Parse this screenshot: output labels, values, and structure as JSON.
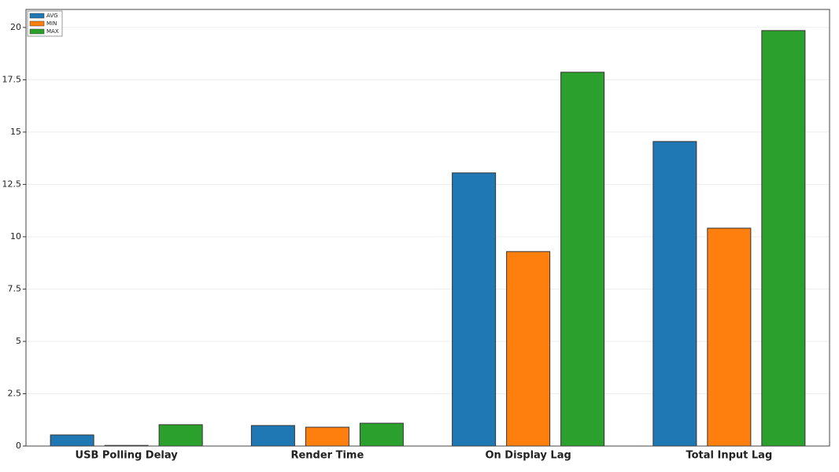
{
  "chart_data": {
    "type": "bar",
    "categories": [
      "USB Polling Delay",
      "Render Time",
      "On Display Lag",
      "Total Input Lag"
    ],
    "series": [
      {
        "name": "AVG",
        "color": "#1f77b4",
        "values": [
          0.53,
          0.98,
          13.05,
          14.55
        ]
      },
      {
        "name": "MIN",
        "color": "#ff7f0e",
        "values": [
          0.03,
          0.9,
          9.29,
          10.41
        ]
      },
      {
        "name": "MAX",
        "color": "#2ca02c",
        "values": [
          1.02,
          1.09,
          17.86,
          19.85
        ]
      }
    ],
    "ylim": [
      0,
      20.86
    ],
    "yticks": [
      0,
      2.5,
      5,
      7.5,
      10,
      12.5,
      15,
      17.5,
      20
    ],
    "grid": true,
    "legend": "upper left"
  }
}
